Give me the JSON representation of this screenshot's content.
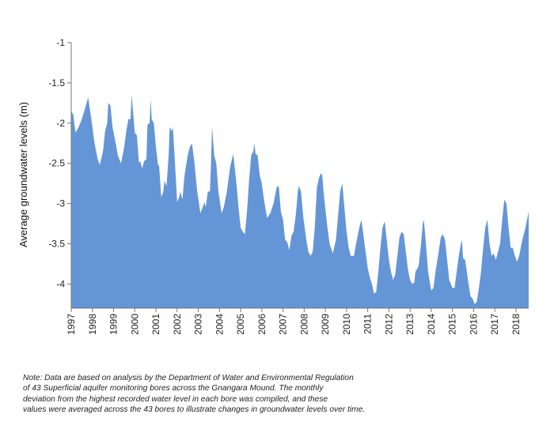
{
  "chart_data": {
    "type": "area",
    "title": "",
    "xlabel": "",
    "ylabel": "Average groundwater levels (m)",
    "ylim": [
      -4.3,
      -1
    ],
    "yticks": [
      "-1",
      "-1.5",
      "-2",
      "-2.5",
      "-3",
      "-3.5",
      "-4"
    ],
    "xlim": [
      1997,
      2018.6
    ],
    "xticks": [
      "1997",
      "1998",
      "1999",
      "2000",
      "2001",
      "2002",
      "2003",
      "2004",
      "2005",
      "2006",
      "2007",
      "2008",
      "2009",
      "2010",
      "2011",
      "2012",
      "2013",
      "2014",
      "2015",
      "2016",
      "2017",
      "2018"
    ],
    "grid": false,
    "legend": "none",
    "fill_color": "#6495d6",
    "baseline": -4.3,
    "points": [
      [
        1997.0,
        -1.85
      ],
      [
        1997.1,
        -1.9
      ],
      [
        1997.2,
        -2.12
      ],
      [
        1997.35,
        -2.05
      ],
      [
        1997.5,
        -1.95
      ],
      [
        1997.65,
        -1.82
      ],
      [
        1997.8,
        -1.68
      ],
      [
        1997.95,
        -1.95
      ],
      [
        1998.1,
        -2.25
      ],
      [
        1998.25,
        -2.45
      ],
      [
        1998.35,
        -2.52
      ],
      [
        1998.5,
        -2.35
      ],
      [
        1998.6,
        -2.1
      ],
      [
        1998.7,
        -2.0
      ],
      [
        1998.75,
        -1.75
      ],
      [
        1998.85,
        -1.78
      ],
      [
        1998.95,
        -2.05
      ],
      [
        1999.1,
        -2.25
      ],
      [
        1999.2,
        -2.4
      ],
      [
        1999.35,
        -2.5
      ],
      [
        1999.5,
        -2.3
      ],
      [
        1999.6,
        -2.1
      ],
      [
        1999.7,
        -1.95
      ],
      [
        1999.8,
        -1.95
      ],
      [
        1999.85,
        -1.65
      ],
      [
        1999.95,
        -1.95
      ],
      [
        2000.0,
        -2.12
      ],
      [
        2000.1,
        -2.15
      ],
      [
        2000.2,
        -2.5
      ],
      [
        2000.25,
        -2.47
      ],
      [
        2000.35,
        -2.56
      ],
      [
        2000.45,
        -2.47
      ],
      [
        2000.55,
        -2.45
      ],
      [
        2000.6,
        -2.02
      ],
      [
        2000.7,
        -2.0
      ],
      [
        2000.75,
        -1.7
      ],
      [
        2000.8,
        -1.95
      ],
      [
        2000.9,
        -2.0
      ],
      [
        2001.0,
        -2.3
      ],
      [
        2001.1,
        -2.52
      ],
      [
        2001.15,
        -2.53
      ],
      [
        2001.25,
        -2.92
      ],
      [
        2001.35,
        -2.85
      ],
      [
        2001.4,
        -2.72
      ],
      [
        2001.5,
        -2.78
      ],
      [
        2001.6,
        -2.4
      ],
      [
        2001.65,
        -2.05
      ],
      [
        2001.75,
        -2.1
      ],
      [
        2001.8,
        -2.05
      ],
      [
        2001.9,
        -2.5
      ],
      [
        2002.0,
        -2.98
      ],
      [
        2002.1,
        -2.92
      ],
      [
        2002.15,
        -2.85
      ],
      [
        2002.25,
        -2.95
      ],
      [
        2002.35,
        -2.65
      ],
      [
        2002.5,
        -2.4
      ],
      [
        2002.6,
        -2.3
      ],
      [
        2002.7,
        -2.25
      ],
      [
        2002.8,
        -2.45
      ],
      [
        2002.95,
        -2.85
      ],
      [
        2003.1,
        -3.12
      ],
      [
        2003.2,
        -3.05
      ],
      [
        2003.3,
        -2.98
      ],
      [
        2003.35,
        -3.05
      ],
      [
        2003.45,
        -2.85
      ],
      [
        2003.55,
        -2.85
      ],
      [
        2003.6,
        -2.5
      ],
      [
        2003.65,
        -2.05
      ],
      [
        2003.75,
        -2.4
      ],
      [
        2003.85,
        -2.5
      ],
      [
        2003.95,
        -2.85
      ],
      [
        2004.1,
        -3.12
      ],
      [
        2004.2,
        -3.05
      ],
      [
        2004.35,
        -2.85
      ],
      [
        2004.5,
        -2.55
      ],
      [
        2004.65,
        -2.38
      ],
      [
        2004.8,
        -2.75
      ],
      [
        2004.9,
        -3.05
      ],
      [
        2005.0,
        -3.3
      ],
      [
        2005.1,
        -3.35
      ],
      [
        2005.2,
        -3.38
      ],
      [
        2005.3,
        -3.1
      ],
      [
        2005.4,
        -2.7
      ],
      [
        2005.5,
        -2.4
      ],
      [
        2005.6,
        -2.35
      ],
      [
        2005.65,
        -2.25
      ],
      [
        2005.7,
        -2.38
      ],
      [
        2005.8,
        -2.4
      ],
      [
        2005.9,
        -2.65
      ],
      [
        2006.0,
        -2.75
      ],
      [
        2006.1,
        -2.95
      ],
      [
        2006.25,
        -3.18
      ],
      [
        2006.4,
        -3.12
      ],
      [
        2006.55,
        -3.0
      ],
      [
        2006.7,
        -2.8
      ],
      [
        2006.8,
        -2.78
      ],
      [
        2006.9,
        -3.1
      ],
      [
        2007.0,
        -3.2
      ],
      [
        2007.1,
        -3.45
      ],
      [
        2007.2,
        -3.48
      ],
      [
        2007.3,
        -3.58
      ],
      [
        2007.4,
        -3.4
      ],
      [
        2007.5,
        -3.35
      ],
      [
        2007.6,
        -3.15
      ],
      [
        2007.7,
        -2.85
      ],
      [
        2007.75,
        -2.78
      ],
      [
        2007.85,
        -2.85
      ],
      [
        2007.95,
        -3.15
      ],
      [
        2008.1,
        -3.45
      ],
      [
        2008.2,
        -3.6
      ],
      [
        2008.3,
        -3.65
      ],
      [
        2008.4,
        -3.6
      ],
      [
        2008.5,
        -3.3
      ],
      [
        2008.6,
        -2.8
      ],
      [
        2008.7,
        -2.68
      ],
      [
        2008.8,
        -2.62
      ],
      [
        2008.85,
        -2.65
      ],
      [
        2008.95,
        -2.95
      ],
      [
        2009.1,
        -3.3
      ],
      [
        2009.2,
        -3.5
      ],
      [
        2009.35,
        -3.62
      ],
      [
        2009.5,
        -3.45
      ],
      [
        2009.6,
        -3.15
      ],
      [
        2009.7,
        -2.85
      ],
      [
        2009.8,
        -2.75
      ],
      [
        2009.9,
        -3.05
      ],
      [
        2010.0,
        -3.35
      ],
      [
        2010.1,
        -3.55
      ],
      [
        2010.2,
        -3.65
      ],
      [
        2010.35,
        -3.65
      ],
      [
        2010.45,
        -3.5
      ],
      [
        2010.6,
        -3.3
      ],
      [
        2010.7,
        -3.2
      ],
      [
        2010.8,
        -3.4
      ],
      [
        2010.9,
        -3.6
      ],
      [
        2011.0,
        -3.8
      ],
      [
        2011.1,
        -3.92
      ],
      [
        2011.2,
        -4.0
      ],
      [
        2011.3,
        -4.12
      ],
      [
        2011.4,
        -4.1
      ],
      [
        2011.5,
        -3.85
      ],
      [
        2011.6,
        -3.55
      ],
      [
        2011.7,
        -3.3
      ],
      [
        2011.8,
        -3.22
      ],
      [
        2011.9,
        -3.45
      ],
      [
        2012.0,
        -3.7
      ],
      [
        2012.1,
        -3.85
      ],
      [
        2012.2,
        -3.95
      ],
      [
        2012.3,
        -3.88
      ],
      [
        2012.4,
        -3.65
      ],
      [
        2012.5,
        -3.42
      ],
      [
        2012.6,
        -3.35
      ],
      [
        2012.7,
        -3.38
      ],
      [
        2012.8,
        -3.6
      ],
      [
        2012.9,
        -3.82
      ],
      [
        2013.0,
        -3.95
      ],
      [
        2013.1,
        -4.0
      ],
      [
        2013.2,
        -3.98
      ],
      [
        2013.25,
        -3.85
      ],
      [
        2013.4,
        -3.78
      ],
      [
        2013.5,
        -3.55
      ],
      [
        2013.6,
        -3.25
      ],
      [
        2013.65,
        -3.2
      ],
      [
        2013.75,
        -3.5
      ],
      [
        2013.85,
        -3.85
      ],
      [
        2014.0,
        -4.08
      ],
      [
        2014.1,
        -4.05
      ],
      [
        2014.2,
        -3.85
      ],
      [
        2014.35,
        -3.6
      ],
      [
        2014.45,
        -3.42
      ],
      [
        2014.55,
        -3.38
      ],
      [
        2014.65,
        -3.45
      ],
      [
        2014.75,
        -3.7
      ],
      [
        2014.85,
        -3.95
      ],
      [
        2015.0,
        -4.05
      ],
      [
        2015.1,
        -4.05
      ],
      [
        2015.2,
        -3.85
      ],
      [
        2015.3,
        -3.65
      ],
      [
        2015.4,
        -3.5
      ],
      [
        2015.45,
        -3.45
      ],
      [
        2015.5,
        -3.68
      ],
      [
        2015.6,
        -3.7
      ],
      [
        2015.75,
        -3.98
      ],
      [
        2015.85,
        -4.15
      ],
      [
        2015.95,
        -4.18
      ],
      [
        2016.05,
        -4.25
      ],
      [
        2016.15,
        -4.22
      ],
      [
        2016.25,
        -4.05
      ],
      [
        2016.35,
        -3.85
      ],
      [
        2016.45,
        -3.55
      ],
      [
        2016.55,
        -3.3
      ],
      [
        2016.65,
        -3.2
      ],
      [
        2016.75,
        -3.5
      ],
      [
        2016.85,
        -3.65
      ],
      [
        2016.95,
        -3.62
      ],
      [
        2017.05,
        -3.7
      ],
      [
        2017.15,
        -3.6
      ],
      [
        2017.25,
        -3.5
      ],
      [
        2017.35,
        -3.2
      ],
      [
        2017.45,
        -2.95
      ],
      [
        2017.55,
        -3.0
      ],
      [
        2017.65,
        -3.3
      ],
      [
        2017.75,
        -3.55
      ],
      [
        2017.85,
        -3.55
      ],
      [
        2017.95,
        -3.65
      ],
      [
        2018.05,
        -3.72
      ],
      [
        2018.15,
        -3.65
      ],
      [
        2018.3,
        -3.45
      ],
      [
        2018.45,
        -3.3
      ],
      [
        2018.6,
        -3.1
      ]
    ]
  },
  "note": {
    "lines": [
      "Note: Data are based on analysis by the Department of Water and Environmental Regulation",
      "of 43 Superficial aquifer monitoring bores across the Gnangara Mound. The monthly",
      "deviation from the highest recorded water level in each bore was compiled, and these",
      "values were averaged across the 43 bores to illustrate changes in groundwater levels over time."
    ]
  }
}
